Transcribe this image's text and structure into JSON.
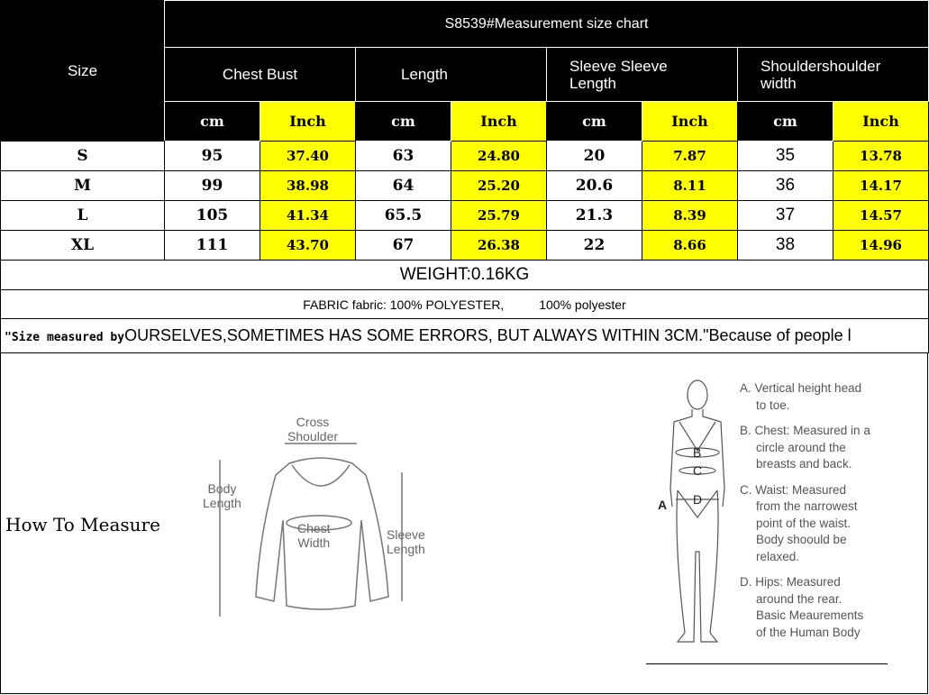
{
  "title": "S8539#Measurement size chart",
  "size_label": "Size",
  "columns": [
    {
      "name": "Chest Bust",
      "units": [
        "cm",
        "Inch"
      ]
    },
    {
      "name": "Length",
      "units": [
        "cm",
        "Inch"
      ]
    },
    {
      "name": "Sleeve Sleeve Length",
      "line1": "Sleeve Sleeve",
      "line2": "Length",
      "units": [
        "cm",
        "Inch"
      ]
    },
    {
      "name": "Shouldershoulder width",
      "line1": "Shouldershoulder",
      "line2": "width",
      "units": [
        "cm",
        "Inch"
      ]
    }
  ],
  "rows": [
    {
      "size": "S",
      "v": [
        "95",
        "37.40",
        "63",
        "24.80",
        "20",
        "7.87",
        "35",
        "13.78"
      ]
    },
    {
      "size": "M",
      "v": [
        "99",
        "38.98",
        "64",
        "25.20",
        "20.6",
        "8.11",
        "36",
        "14.17"
      ]
    },
    {
      "size": "L",
      "v": [
        "105",
        "41.34",
        "65.5",
        "25.79",
        "21.3",
        "8.39",
        "37",
        "14.57"
      ]
    },
    {
      "size": "XL",
      "v": [
        "111",
        "43.70",
        "67",
        "26.38",
        "22",
        "8.66",
        "38",
        "14.96"
      ]
    }
  ],
  "weight": "WEIGHT:0.16KG",
  "fabric": "FABRIC fabric: 100% POLYESTER,          100% polyester",
  "note_prefix": "\"Size measured by",
  "note_rest": "OURSELVES,SOMETIMES HAS SOME ERRORS, BUT ALWAYS WITHIN 3CM.\"Because of people l",
  "how_to_measure": "How To Measure",
  "garment_labels": {
    "cross_shoulder": [
      "Cross",
      "Shoulder"
    ],
    "body_length": [
      "Body",
      "Length"
    ],
    "chest_width": [
      "Chest",
      "Width"
    ],
    "sleeve_length": [
      "Sleeve",
      "Length"
    ]
  },
  "body_labels": {
    "a": "A",
    "b": "B",
    "c": "C",
    "d": "D"
  },
  "descriptions": [
    {
      "l1": "A. Vertical height head",
      "l2": "to toe."
    },
    {
      "l1": "B. Chest: Measured in a",
      "l2": "circle around the",
      "l3": "breasts and back."
    },
    {
      "l1": "C. Waist: Measured",
      "l2": "from the narrowest",
      "l3": "point of the waist.",
      "l4": "Body shoould be",
      "l5": "relaxed."
    },
    {
      "l1": "D. Hips: Measured",
      "l2": "around the rear.",
      "l3": "Basic Meaurements",
      "l4": "of the Human Body"
    }
  ],
  "colors": {
    "header_bg": "#000000",
    "inch_highlight": "#ffff00"
  }
}
